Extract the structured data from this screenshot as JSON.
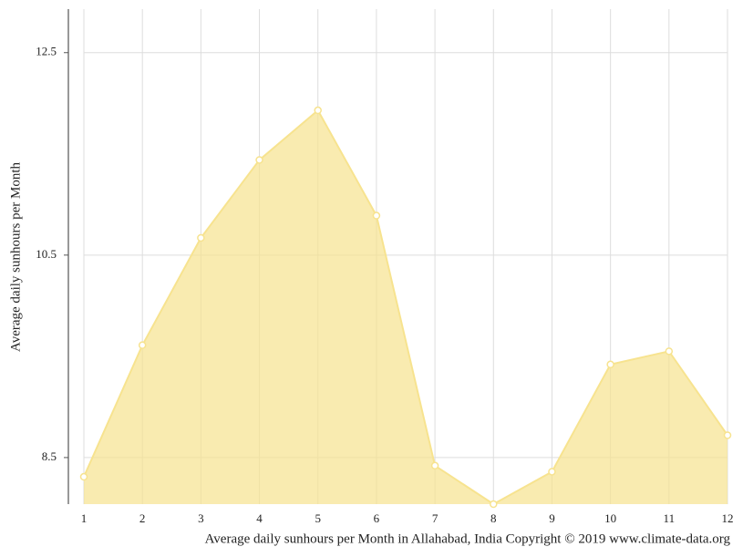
{
  "chart_data": {
    "type": "area",
    "x_label": "Average daily sunhours per Month in Allahabad, India Copyright © 2019 www.climate-data.org",
    "y_label": "Average daily sunhours per Month",
    "x": [
      1,
      2,
      3,
      4,
      5,
      6,
      7,
      8,
      9,
      10,
      11,
      12
    ],
    "series": [
      {
        "color": "#f7e38f",
        "values": [
          8.31,
          9.61,
          10.67,
          11.44,
          11.93,
          10.89,
          8.42,
          8.04,
          8.36,
          9.42,
          9.55,
          8.72
        ]
      }
    ],
    "xlim": [
      1,
      12
    ],
    "xticks": [
      1,
      2,
      3,
      4,
      5,
      6,
      7,
      8,
      9,
      10,
      11,
      12
    ],
    "ylim": [
      8.04,
      12.93
    ],
    "yticks": [
      8.5,
      10.5,
      12.5
    ],
    "grid": true
  }
}
